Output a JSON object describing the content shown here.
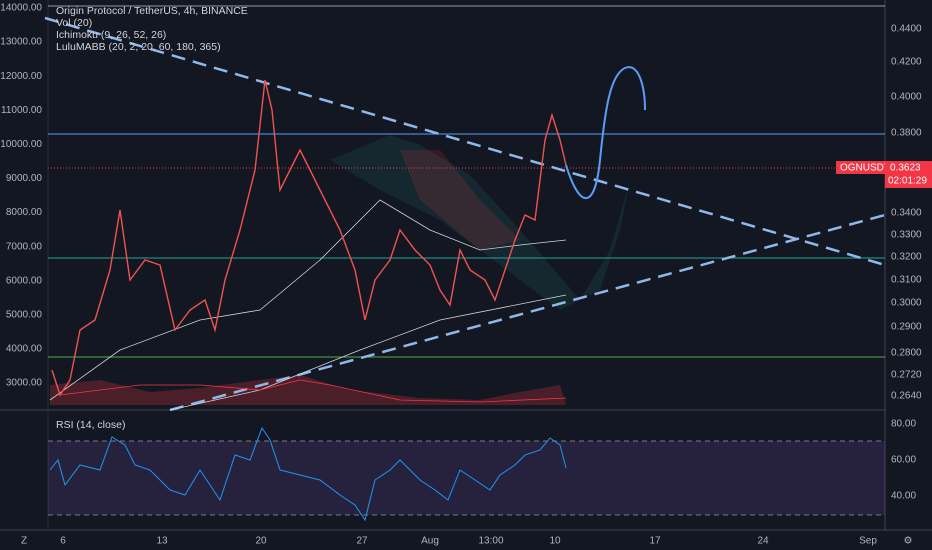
{
  "legend": {
    "title": "Origin Protocol / TetherUS, 4h, BINANCE",
    "indicators": [
      "Vol (20)",
      "Ichimoku (9, 26, 52, 26)",
      "LuluMABB (20, 2, 20, 60, 180, 365)"
    ]
  },
  "left_axis": [
    "14000.00",
    "13000.00",
    "12000.00",
    "11000.00",
    "10000.00",
    "9000.00",
    "8000.00",
    "7000.00",
    "6000.00",
    "5000.00",
    "4000.00",
    "3000.00"
  ],
  "right_axis": [
    "0.4400",
    "0.4200",
    "0.4000",
    "0.3800",
    "0.3400",
    "0.3300",
    "0.3200",
    "0.3100",
    "0.3000",
    "0.2900",
    "0.2800",
    "0.2720",
    "0.2640"
  ],
  "price_tag": {
    "symbol": "OGNUSDT",
    "price": "0.3623",
    "countdown": "02:01:29"
  },
  "rsi": {
    "label": "RSI (14, close)",
    "axis": [
      "80.00",
      "60.00",
      "40.00"
    ]
  },
  "time_axis": [
    "6",
    "13",
    "20",
    "27",
    "Aug",
    "13:00",
    "10",
    "17",
    "24",
    "Sep"
  ]
}
